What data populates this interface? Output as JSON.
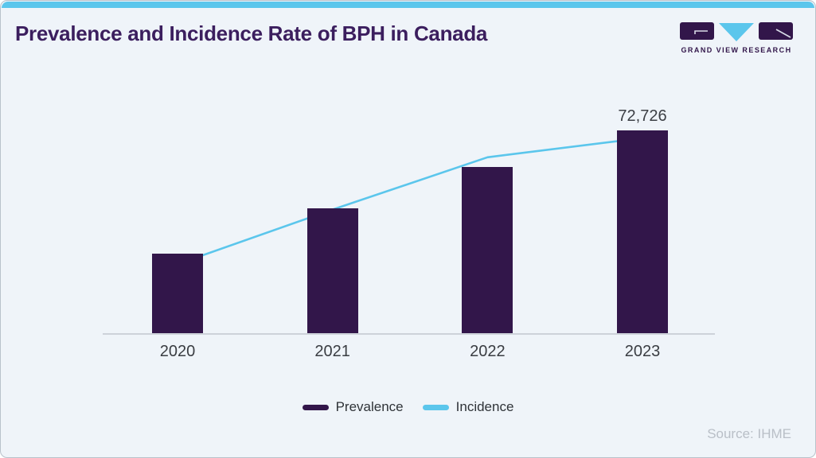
{
  "frame": {
    "background": "#eff4f9",
    "border_color": "#b8c2cb",
    "accent_bar_color": "#5bc6ec"
  },
  "header": {
    "title": "Prevalence and Incidence Rate of BPH in Canada",
    "title_color": "#3b1e5e",
    "logo": {
      "brand": "GRAND VIEW RESEARCH",
      "block_color": "#32164a",
      "triangle_color": "#5bc6ec"
    }
  },
  "chart_data": {
    "type": "bar",
    "categories": [
      "2020",
      "2021",
      "2022",
      "2023"
    ],
    "series": [
      {
        "name": "Prevalence",
        "type": "bar",
        "color": "#32164a",
        "values": [
          28600,
          45000,
          59700,
          72726
        ]
      },
      {
        "name": "Incidence",
        "type": "line",
        "color": "#5bc6ec",
        "values": [
          24800,
          44400,
          63200,
          70100
        ]
      }
    ],
    "annotations": [
      {
        "series": "Prevalence",
        "category": "2023",
        "text": "72,726"
      }
    ],
    "title": "Prevalence and Incidence Rate of BPH in Canada",
    "xlabel": "",
    "ylabel": "",
    "ylim": [
      0,
      80000
    ],
    "grid": false,
    "legend_position": "bottom"
  },
  "legend": {
    "items": [
      {
        "label": "Prevalence",
        "color": "#32164a"
      },
      {
        "label": "Incidence",
        "color": "#5bc6ec"
      }
    ]
  },
  "footer": {
    "source": "Source: IHME"
  }
}
